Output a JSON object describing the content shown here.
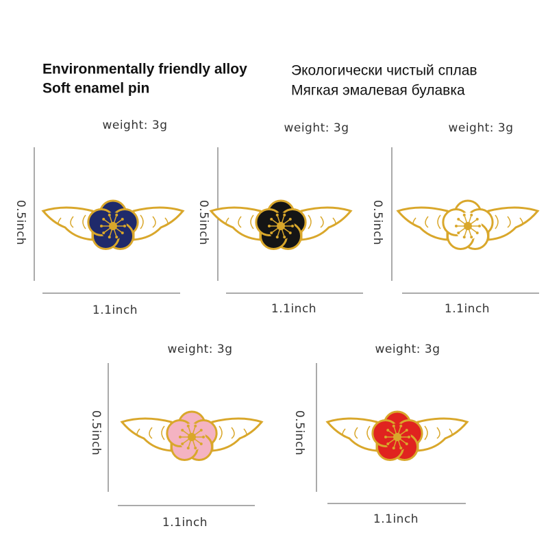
{
  "header": {
    "title_en": [
      "Environmentally friendly alloy",
      "Soft enamel pin"
    ],
    "title_ru": [
      "Экологически чистый сплав",
      "Мягкая эмалевая булавка"
    ]
  },
  "items": [
    {
      "weight": "weight: 3g",
      "height": "0.5inch",
      "width": "1.1inch",
      "color": "#1f2a6b"
    },
    {
      "weight": "weight: 3g",
      "height": "0.5inch",
      "width": "1.1inch",
      "color": "#151515"
    },
    {
      "weight": "weight: 3g",
      "height": "0.5inch",
      "width": "1.1inch",
      "color": "#ffffff"
    },
    {
      "weight": "weight: 3g",
      "height": "0.5inch",
      "width": "1.1inch",
      "color": "#f4b3c2"
    },
    {
      "weight": "weight: 3g",
      "height": "0.5inch",
      "width": "1.1inch",
      "color": "#e0231f"
    }
  ]
}
